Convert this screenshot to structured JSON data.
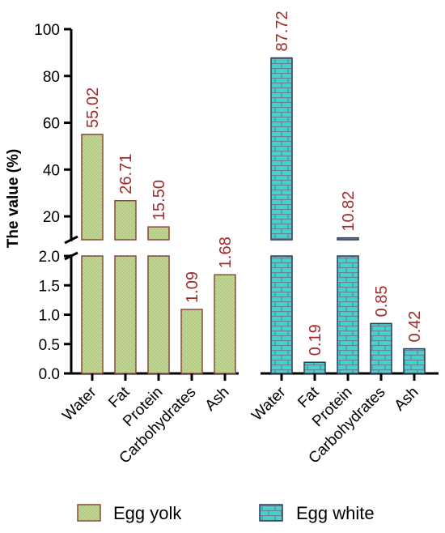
{
  "chart_data": {
    "type": "bar",
    "title": "",
    "xlabel": "",
    "ylabel": "The value (%)",
    "broken_axis": true,
    "ylim_lower": [
      0,
      2.0
    ],
    "ylim_upper": [
      10,
      100
    ],
    "yticks_lower": [
      "0.0",
      "0.5",
      "1.0",
      "1.5",
      "2.0"
    ],
    "yticks_upper": [
      "20",
      "40",
      "60",
      "80",
      "100"
    ],
    "groups": [
      {
        "name": "Egg yolk",
        "categories": [
          "Water",
          "Fat",
          "Protein",
          "Carbohydrates",
          "Ash"
        ],
        "values": [
          55.02,
          26.71,
          15.5,
          1.09,
          1.68
        ],
        "labels": [
          "55.02",
          "26.71",
          "15.50",
          "1.09",
          "1.68"
        ],
        "color": "#b5dc8c",
        "edge_color": "#8a4a3a",
        "pattern": "dotted"
      },
      {
        "name": "Egg white",
        "categories": [
          "Water",
          "Fat",
          "Protein",
          "Carbohydrates",
          "Ash"
        ],
        "values": [
          87.72,
          0.19,
          10.82,
          0.85,
          0.42
        ],
        "labels": [
          "87.72",
          "0.19",
          "10.82",
          "0.85",
          "0.42"
        ],
        "color": "#3fd6c8",
        "edge_color": "#2a3f5a",
        "pattern": "brick"
      }
    ],
    "label_color": "#a12a2a",
    "legend_position": "bottom",
    "grid": false
  }
}
